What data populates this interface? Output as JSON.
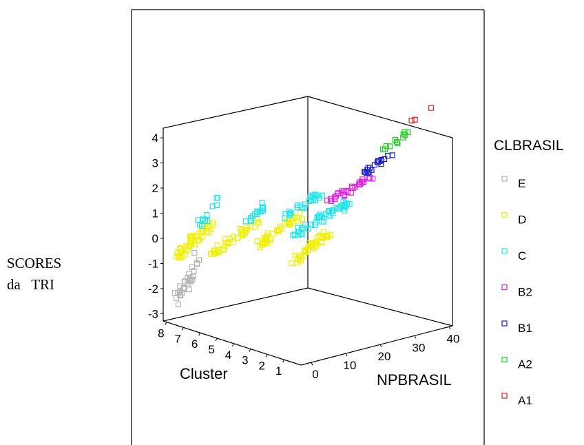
{
  "chart_data": {
    "type": "scatter",
    "y_label_lines": [
      "SCORES",
      "da   TRI"
    ],
    "x_label": "NPBRASIL",
    "z_label": "Cluster",
    "y_ticks": [
      "4",
      "3",
      "2",
      "1",
      "0",
      "-1",
      "-2",
      "-3"
    ],
    "x_ticks": [
      "0",
      "10",
      "20",
      "30",
      "40"
    ],
    "z_ticks": [
      "8",
      "7",
      "6",
      "5",
      "4",
      "3",
      "2",
      "1"
    ],
    "legend": {
      "title": "CLBRASIL",
      "position": "right",
      "entries": [
        {
          "label": "E",
          "color": "#b4b4b4"
        },
        {
          "label": "D",
          "color": "#f0f000"
        },
        {
          "label": "C",
          "color": "#1ee6f0"
        },
        {
          "label": "B2",
          "color": "#e61ee6"
        },
        {
          "label": "B1",
          "color": "#1e1ed2"
        },
        {
          "label": "A2",
          "color": "#1ed21e"
        },
        {
          "label": "A1",
          "color": "#e61e1e"
        }
      ]
    },
    "marker": "open-square",
    "groups": [
      {
        "cluster": 8,
        "class": "E",
        "x_range": [
          0,
          6
        ],
        "y_range": [
          -3.0,
          -0.8
        ],
        "n": 30
      },
      {
        "cluster": 8,
        "class": "D",
        "x_range": [
          0,
          10
        ],
        "y_range": [
          -1.0,
          0.3
        ],
        "n": 45
      },
      {
        "cluster": 8,
        "class": "C",
        "x_range": [
          6,
          12
        ],
        "y_range": [
          0.0,
          1.2
        ],
        "n": 12
      },
      {
        "cluster": 6,
        "class": "D",
        "x_range": [
          0,
          14
        ],
        "y_range": [
          -0.9,
          0.2
        ],
        "n": 40
      },
      {
        "cluster": 6,
        "class": "C",
        "x_range": [
          10,
          16
        ],
        "y_range": [
          0.0,
          0.8
        ],
        "n": 15
      },
      {
        "cluster": 4,
        "class": "D",
        "x_range": [
          4,
          16
        ],
        "y_range": [
          -0.7,
          0.4
        ],
        "n": 40
      },
      {
        "cluster": 4,
        "class": "C",
        "x_range": [
          12,
          22
        ],
        "y_range": [
          0.2,
          1.0
        ],
        "n": 25
      },
      {
        "cluster": 1,
        "class": "D",
        "x_range": [
          0,
          10
        ],
        "y_range": [
          -1.2,
          0.0
        ],
        "n": 40
      },
      {
        "cluster": 1,
        "class": "C",
        "x_range": [
          0,
          16
        ],
        "y_range": [
          -0.1,
          0.9
        ],
        "n": 45
      },
      {
        "cluster": 1,
        "class": "B2",
        "x_range": [
          10,
          22
        ],
        "y_range": [
          0.9,
          1.6
        ],
        "n": 30
      },
      {
        "cluster": 1,
        "class": "B1",
        "x_range": [
          20,
          28
        ],
        "y_range": [
          1.7,
          2.3
        ],
        "n": 20
      },
      {
        "cluster": 1,
        "class": "A2",
        "x_range": [
          26,
          34
        ],
        "y_range": [
          2.3,
          3.1
        ],
        "n": 12
      },
      {
        "cluster": 1,
        "class": "A1",
        "x_range": [
          33,
          40
        ],
        "y_range": [
          3.3,
          3.7
        ],
        "n": 3
      }
    ]
  }
}
